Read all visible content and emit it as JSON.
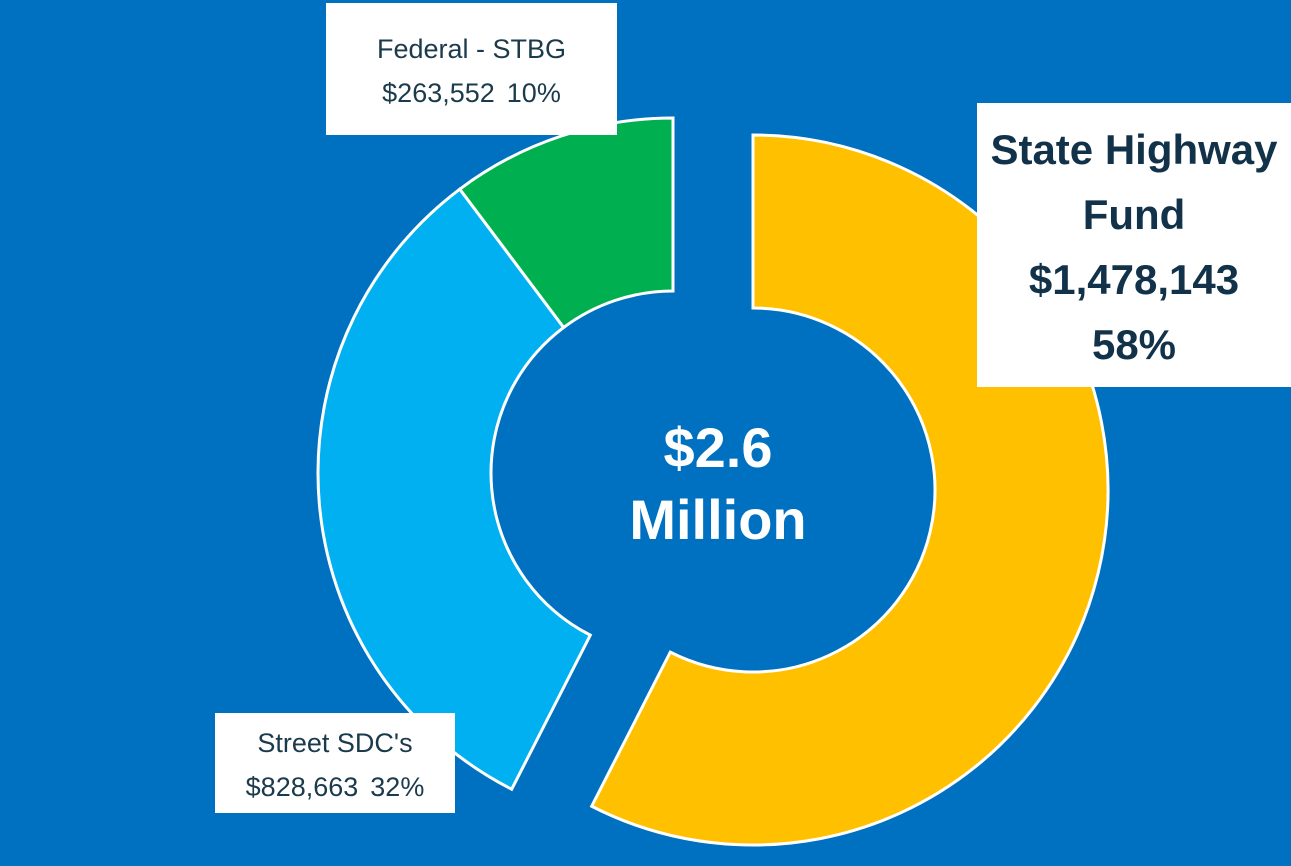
{
  "chart_data": {
    "type": "donut",
    "categories": [
      "State Highway Fund",
      "Street SDC's",
      "Federal - STBG"
    ],
    "values": [
      1478143,
      828663,
      263552
    ],
    "value_labels": [
      "$1,478,143",
      "$828,663",
      "$263,552"
    ],
    "percents": [
      58,
      32,
      10
    ],
    "percent_labels": [
      "58%",
      "32%",
      "10%"
    ],
    "colors": [
      "#FFC000",
      "#00B0F0",
      "#00B050"
    ],
    "center_label": [
      "$2.6",
      "Million"
    ],
    "background": "#0070C0"
  }
}
